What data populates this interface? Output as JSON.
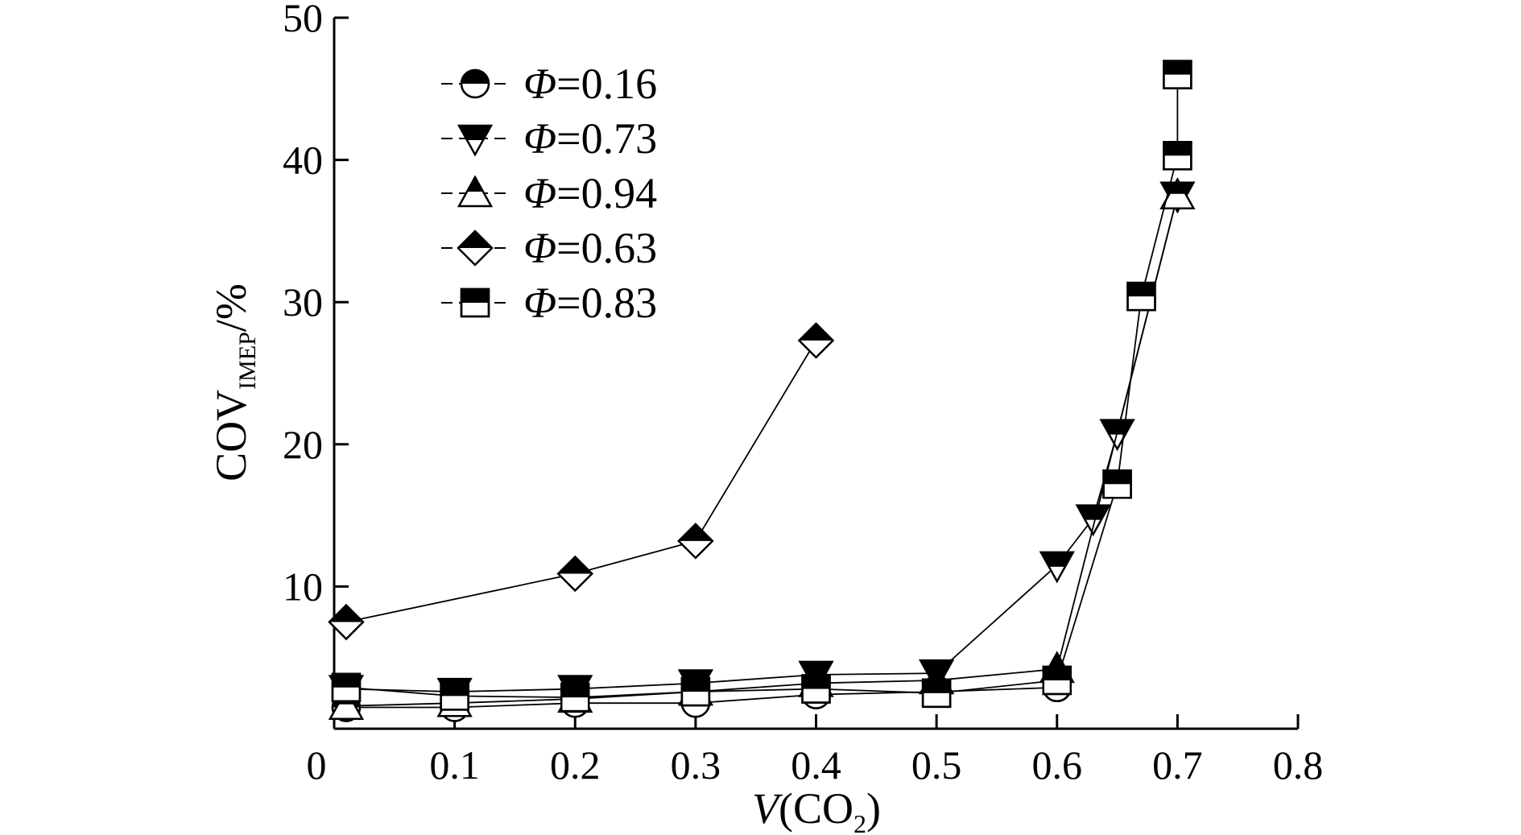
{
  "chart_data": {
    "type": "line",
    "xlabel": {
      "main": "V",
      "paren_open": "(CO",
      "sub": "2",
      "paren_close": ")"
    },
    "ylabel": {
      "main": "COV",
      "sub": "IMEP",
      "suffix": "/%"
    },
    "xlim": [
      0,
      0.8
    ],
    "ylim": [
      0,
      50
    ],
    "x_ticks": [
      "0",
      "0.1",
      "0.2",
      "0.3",
      "0.4",
      "0.5",
      "0.6",
      "0.7",
      "0.8"
    ],
    "y_ticks": [
      "10",
      "20",
      "30",
      "40",
      "50"
    ],
    "legend_position": "top-left",
    "grid": false,
    "series": [
      {
        "name": "Φ=0.16",
        "symbol": "Φ",
        "value_text": "=0.16",
        "marker": "circle",
        "x": [
          0.01,
          0.1,
          0.2,
          0.3,
          0.4,
          0.5,
          0.6
        ],
        "y": [
          1.5,
          1.5,
          1.8,
          1.8,
          2.4,
          2.6,
          2.9
        ]
      },
      {
        "name": "Φ=0.73",
        "symbol": "Φ",
        "value_text": "=0.73",
        "marker": "triangle-down",
        "x": [
          0.01,
          0.1,
          0.2,
          0.3,
          0.4,
          0.5,
          0.6,
          0.63,
          0.65,
          0.7
        ],
        "y": [
          2.8,
          2.6,
          2.8,
          3.2,
          3.8,
          3.9,
          11.5,
          14.8,
          20.8,
          37.5
        ]
      },
      {
        "name": "Φ=0.94",
        "symbol": "Φ",
        "value_text": "=0.94",
        "marker": "triangle-up",
        "x": [
          0.01,
          0.1,
          0.2,
          0.3,
          0.4,
          0.5,
          0.6,
          0.7
        ],
        "y": [
          1.6,
          1.8,
          2.1,
          2.6,
          3.2,
          3.4,
          4.2,
          37.5
        ]
      },
      {
        "name": "Φ=0.63",
        "symbol": "Φ",
        "value_text": "=0.63",
        "marker": "diamond",
        "x": [
          0.01,
          0.2,
          0.3,
          0.4
        ],
        "y": [
          7.5,
          10.9,
          13.2,
          27.3
        ]
      },
      {
        "name": "Φ=0.83",
        "symbol": "Φ",
        "value_text": "=0.83",
        "marker": "square",
        "x": [
          0.01,
          0.1,
          0.2,
          0.3,
          0.4,
          0.5,
          0.6,
          0.65,
          0.67,
          0.7,
          0.7
        ],
        "y": [
          2.9,
          2.3,
          2.2,
          2.6,
          2.8,
          2.5,
          3.4,
          17.2,
          30.4,
          40.3,
          46.0
        ]
      }
    ]
  }
}
